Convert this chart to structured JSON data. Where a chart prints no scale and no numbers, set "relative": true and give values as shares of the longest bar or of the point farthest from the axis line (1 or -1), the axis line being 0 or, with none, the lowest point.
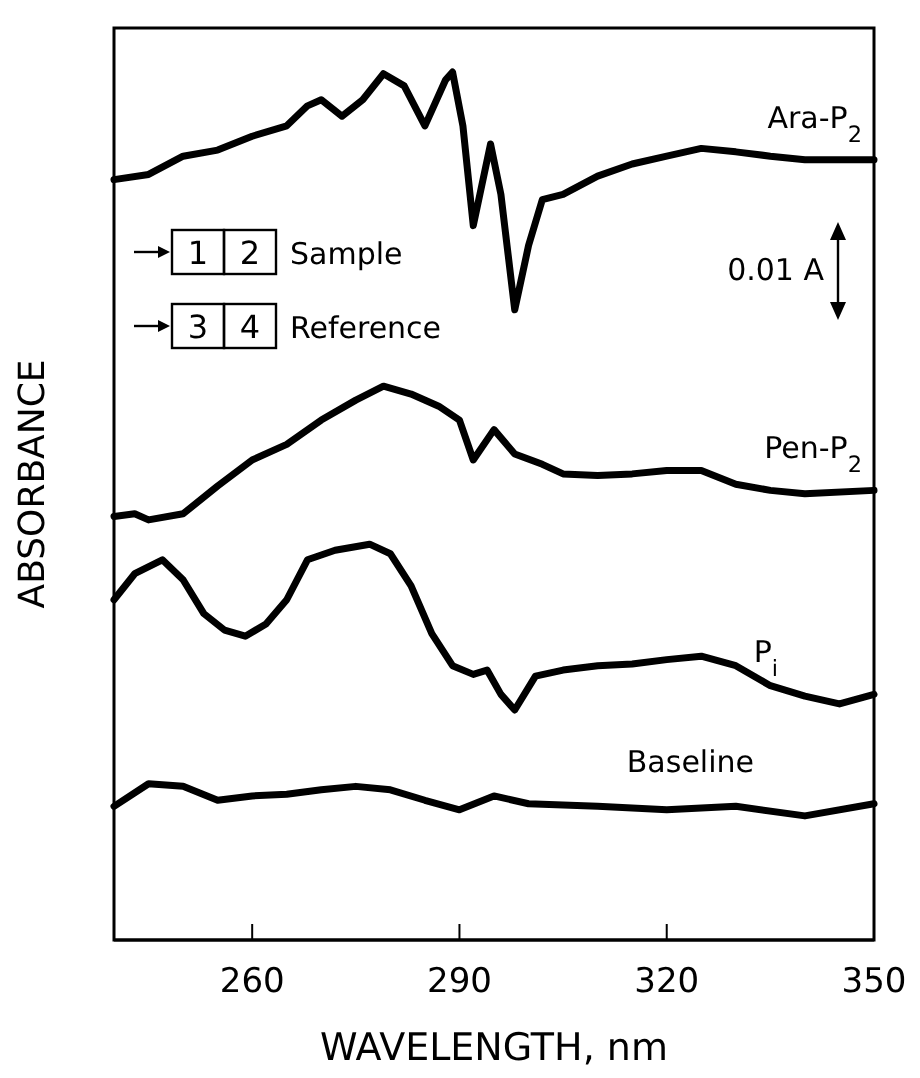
{
  "chart_data": {
    "type": "line",
    "relative": true,
    "xlabel": "WAVELENGTH, nm",
    "ylabel": "ABSORBANCE",
    "xlim": [
      240,
      350
    ],
    "xticks": [
      260,
      290,
      320,
      350
    ],
    "grid": false,
    "marker": "none",
    "line_style": "solid",
    "annotations": [
      "0.01 A",
      "1",
      "2",
      "Sample",
      "3",
      "4",
      "Reference"
    ],
    "series": [
      {
        "name": "Ara-P$_{2}$",
        "color": "#000000",
        "x": [
          240,
          245,
          250,
          255,
          260,
          265,
          268,
          270,
          273,
          276,
          279,
          282,
          285,
          288,
          289,
          290.5,
          292,
          294.5,
          296,
          298,
          300,
          302,
          305,
          310,
          315,
          320,
          325,
          330,
          335,
          340,
          345,
          350
        ],
        "values": [
          0.876,
          0.882,
          0.903,
          0.91,
          0.926,
          0.938,
          0.961,
          0.968,
          0.949,
          0.968,
          0.998,
          0.984,
          0.938,
          0.991,
          1,
          0.938,
          0.823,
          0.917,
          0.859,
          0.726,
          0.8,
          0.853,
          0.859,
          0.88,
          0.894,
          0.903,
          0.912,
          0.908,
          0.903,
          0.899,
          0.899,
          0.899
        ]
      },
      {
        "name": "Pen-P$_{2}$",
        "color": "#000000",
        "x": [
          240,
          243,
          245,
          250,
          255,
          260,
          265,
          270,
          275,
          279,
          283,
          287,
          290,
          292,
          295,
          298,
          302,
          305,
          310,
          315,
          320,
          325,
          330,
          335,
          340,
          350
        ],
        "values": [
          0.488,
          0.491,
          0.484,
          0.491,
          0.523,
          0.553,
          0.571,
          0.599,
          0.622,
          0.638,
          0.629,
          0.615,
          0.599,
          0.553,
          0.588,
          0.56,
          0.548,
          0.537,
          0.535,
          0.537,
          0.541,
          0.541,
          0.525,
          0.518,
          0.514,
          0.518
        ]
      },
      {
        "name": "P$_{i}$",
        "color": "#000000",
        "x": [
          240,
          243,
          247,
          250,
          253,
          256,
          259,
          262,
          265,
          268,
          272,
          277,
          280,
          283,
          286,
          289,
          292,
          294,
          296,
          298,
          301,
          305,
          310,
          315,
          320,
          325,
          330,
          335,
          340,
          345,
          350
        ],
        "values": [
          0.392,
          0.422,
          0.438,
          0.415,
          0.376,
          0.357,
          0.35,
          0.364,
          0.392,
          0.438,
          0.449,
          0.456,
          0.445,
          0.408,
          0.353,
          0.316,
          0.306,
          0.311,
          0.283,
          0.265,
          0.304,
          0.311,
          0.316,
          0.318,
          0.323,
          0.327,
          0.316,
          0.293,
          0.281,
          0.272,
          0.283
        ]
      },
      {
        "name": "Baseline",
        "color": "#000000",
        "x": [
          240,
          245,
          250,
          255,
          260,
          265,
          270,
          275,
          280,
          285,
          290,
          295,
          300,
          310,
          320,
          330,
          340,
          350
        ],
        "values": [
          0.154,
          0.18,
          0.177,
          0.161,
          0.166,
          0.168,
          0.173,
          0.177,
          0.173,
          0.161,
          0.15,
          0.166,
          0.157,
          0.154,
          0.15,
          0.154,
          0.143,
          0.157
        ]
      }
    ]
  }
}
